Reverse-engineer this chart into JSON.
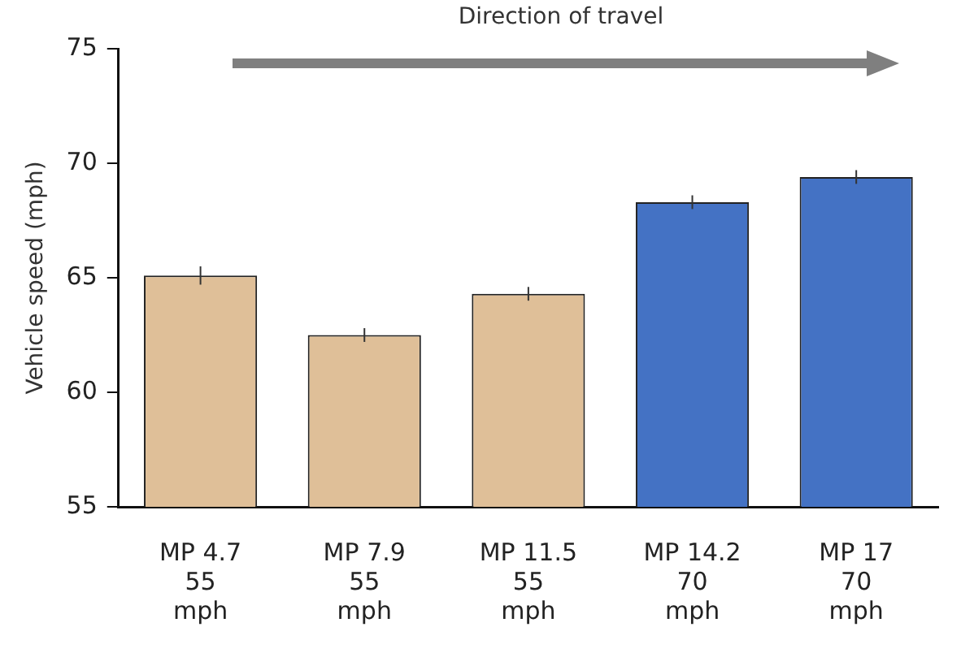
{
  "chart_data": {
    "type": "bar",
    "ylabel": "Vehicle speed (mph)",
    "categories": [
      "MP 4.7 55 mph",
      "MP 7.9 55 mph",
      "MP 11.5 55 mph",
      "MP 14.2 70 mph",
      "MP 17 70 mph"
    ],
    "values": [
      65.1,
      62.5,
      64.3,
      68.3,
      69.4
    ],
    "errors": [
      0.4,
      0.3,
      0.3,
      0.3,
      0.3
    ],
    "colors": [
      "#dfbf98",
      "#dfbf98",
      "#dfbf98",
      "#4472c4",
      "#4472c4"
    ],
    "ylim": [
      55,
      75
    ],
    "yticks": [
      55,
      60,
      65,
      70,
      75
    ],
    "annotations": [
      "Direction of travel"
    ]
  }
}
